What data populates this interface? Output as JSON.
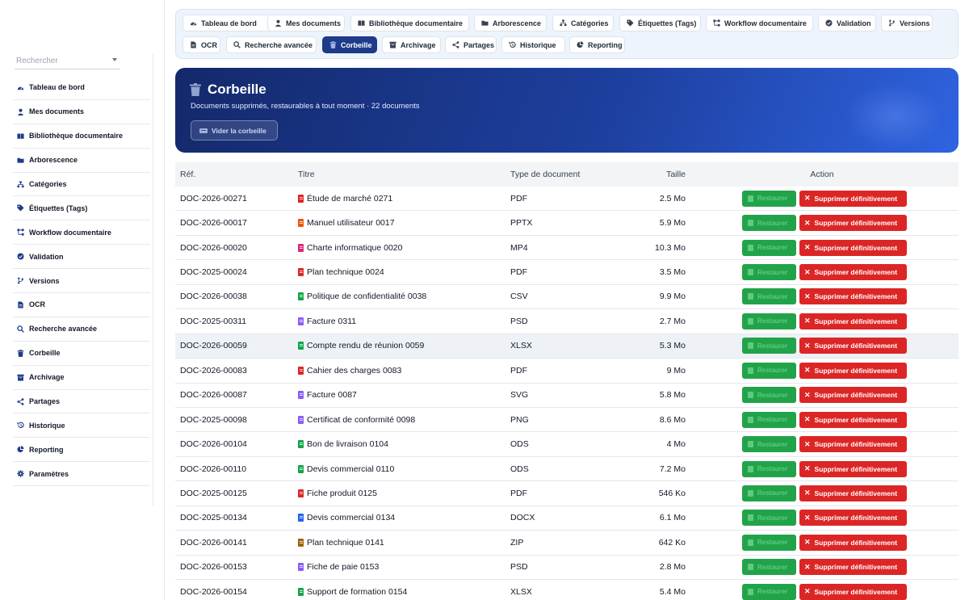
{
  "sidebar": {
    "search_placeholder": "Rechercher",
    "items": [
      {
        "label": "Tableau de bord",
        "icon": "dashboard-icon"
      },
      {
        "label": "Mes documents",
        "icon": "user-icon"
      },
      {
        "label": "Bibliothèque documentaire",
        "icon": "book-icon"
      },
      {
        "label": "Arborescence",
        "icon": "folder-icon"
      },
      {
        "label": "Catégories",
        "icon": "sitemap-icon"
      },
      {
        "label": "Étiquettes (Tags)",
        "icon": "tag-icon"
      },
      {
        "label": "Workflow documentaire",
        "icon": "workflow-icon"
      },
      {
        "label": "Validation",
        "icon": "check-circle-icon"
      },
      {
        "label": "Versions",
        "icon": "branch-icon"
      },
      {
        "label": "OCR",
        "icon": "file-icon"
      },
      {
        "label": "Recherche avancée",
        "icon": "search-icon"
      },
      {
        "label": "Corbeille",
        "icon": "trash-icon"
      },
      {
        "label": "Archivage",
        "icon": "archive-icon"
      },
      {
        "label": "Partages",
        "icon": "share-icon"
      },
      {
        "label": "Historique",
        "icon": "history-icon"
      },
      {
        "label": "Reporting",
        "icon": "pie-chart-icon"
      },
      {
        "label": "Paramètres",
        "icon": "gear-icon"
      }
    ]
  },
  "topnav": {
    "tabs": [
      {
        "label": "Tableau de bord",
        "icon": "dashboard-icon"
      },
      {
        "label": "Mes documents",
        "icon": "user-icon"
      },
      {
        "label": "Bibliothèque documentaire",
        "icon": "book-icon"
      },
      {
        "label": "Arborescence",
        "icon": "folder-icon"
      },
      {
        "label": "Catégories",
        "icon": "sitemap-icon"
      },
      {
        "label": "Étiquettes (Tags)",
        "icon": "tag-icon"
      },
      {
        "label": "Workflow documentaire",
        "icon": "workflow-icon"
      },
      {
        "label": "Validation",
        "icon": "check-circle-icon"
      },
      {
        "label": "Versions",
        "icon": "branch-icon"
      },
      {
        "label": "OCR",
        "icon": "file-icon"
      },
      {
        "label": "Recherche avancée",
        "icon": "search-icon"
      },
      {
        "label": "Corbeille",
        "icon": "trash-icon",
        "active": true
      },
      {
        "label": "Archivage",
        "icon": "archive-icon"
      },
      {
        "label": "Partages",
        "icon": "share-icon"
      },
      {
        "label": "Historique",
        "icon": "history-icon"
      },
      {
        "label": "Reporting",
        "icon": "pie-chart-icon"
      }
    ]
  },
  "banner": {
    "title": "Corbeille",
    "subtitle": "Documents supprimés, restaurables à tout moment · 22 documents",
    "empty_button": "Vider la corbeille"
  },
  "table": {
    "headers": {
      "ref": "Réf.",
      "title": "Titre",
      "type": "Type de document",
      "size": "Taille",
      "action": "Action"
    },
    "restore_label": "Restaurer",
    "delete_label": "Supprimer définitivement",
    "rows": [
      {
        "ref": "DOC-2026-00271",
        "title": "Étude de marché 0271",
        "type": "PDF",
        "size": "2.5 Mo",
        "icon_color": "#dc2626"
      },
      {
        "ref": "DOC-2026-00017",
        "title": "Manuel utilisateur 0017",
        "type": "PPTX",
        "size": "5.9 Mo",
        "icon_color": "#ea580c"
      },
      {
        "ref": "DOC-2026-00020",
        "title": "Charte informatique 0020",
        "type": "MP4",
        "size": "10.3 Mo",
        "icon_color": "#db2777"
      },
      {
        "ref": "DOC-2025-00024",
        "title": "Plan technique 0024",
        "type": "PDF",
        "size": "3.5 Mo",
        "icon_color": "#dc2626"
      },
      {
        "ref": "DOC-2026-00038",
        "title": "Politique de confidentialité 0038",
        "type": "CSV",
        "size": "9.9 Mo",
        "icon_color": "#16a34a"
      },
      {
        "ref": "DOC-2025-00311",
        "title": "Facture 0311",
        "type": "PSD",
        "size": "2.7 Mo",
        "icon_color": "#8b5cf6"
      },
      {
        "ref": "DOC-2026-00059",
        "title": "Compte rendu de réunion 0059",
        "type": "XLSX",
        "size": "5.3 Mo",
        "icon_color": "#16a34a",
        "highlight": true
      },
      {
        "ref": "DOC-2026-00083",
        "title": "Cahier des charges 0083",
        "type": "PDF",
        "size": "9 Mo",
        "icon_color": "#dc2626"
      },
      {
        "ref": "DOC-2026-00087",
        "title": "Facture 0087",
        "type": "SVG",
        "size": "5.8 Mo",
        "icon_color": "#8b5cf6"
      },
      {
        "ref": "DOC-2025-00098",
        "title": "Certificat de conformité 0098",
        "type": "PNG",
        "size": "8.6 Mo",
        "icon_color": "#8b5cf6"
      },
      {
        "ref": "DOC-2026-00104",
        "title": "Bon de livraison 0104",
        "type": "ODS",
        "size": "4 Mo",
        "icon_color": "#16a34a"
      },
      {
        "ref": "DOC-2026-00110",
        "title": "Devis commercial 0110",
        "type": "ODS",
        "size": "7.2 Mo",
        "icon_color": "#16a34a"
      },
      {
        "ref": "DOC-2025-00125",
        "title": "Fiche produit 0125",
        "type": "PDF",
        "size": "546 Ko",
        "icon_color": "#dc2626"
      },
      {
        "ref": "DOC-2025-00134",
        "title": "Devis commercial 0134",
        "type": "DOCX",
        "size": "6.1 Mo",
        "icon_color": "#2563eb"
      },
      {
        "ref": "DOC-2026-00141",
        "title": "Plan technique 0141",
        "type": "ZIP",
        "size": "642 Ko",
        "icon_color": "#a16207"
      },
      {
        "ref": "DOC-2026-00153",
        "title": "Fiche de paie 0153",
        "type": "PSD",
        "size": "2.8 Mo",
        "icon_color": "#8b5cf6"
      },
      {
        "ref": "DOC-2026-00154",
        "title": "Support de formation 0154",
        "type": "XLSX",
        "size": "5.4 Mo",
        "icon_color": "#16a34a"
      }
    ]
  }
}
